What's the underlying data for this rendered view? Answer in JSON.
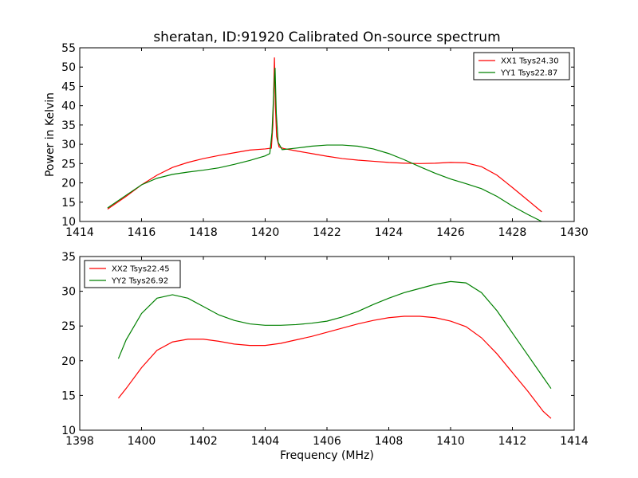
{
  "title": "sheratan, ID:91920 Calibrated On-source spectrum",
  "chart_data": [
    {
      "type": "line",
      "title": "sheratan, ID:91920 Calibrated On-source spectrum",
      "xlabel": "",
      "ylabel": "Power in Kelvin",
      "xlim": [
        1414,
        1430
      ],
      "ylim": [
        10,
        55
      ],
      "xticks": [
        "1414",
        "1416",
        "1418",
        "1420",
        "1422",
        "1424",
        "1426",
        "1428",
        "1430"
      ],
      "yticks": [
        "10",
        "15",
        "20",
        "25",
        "30",
        "35",
        "40",
        "45",
        "50",
        "55"
      ],
      "grid": false,
      "legend_position": "top-right",
      "series": [
        {
          "name": "XX1 Tsys24.30",
          "color": "#ff0000",
          "points": [
            [
              1414.9,
              13.2
            ],
            [
              1415.5,
              16.5
            ],
            [
              1416.0,
              19.5
            ],
            [
              1416.5,
              22.0
            ],
            [
              1417.0,
              24.0
            ],
            [
              1417.5,
              25.3
            ],
            [
              1418.0,
              26.3
            ],
            [
              1418.5,
              27.1
            ],
            [
              1419.0,
              27.8
            ],
            [
              1419.5,
              28.5
            ],
            [
              1420.0,
              28.8
            ],
            [
              1420.2,
              29.0
            ],
            [
              1420.25,
              35.0
            ],
            [
              1420.28,
              45.0
            ],
            [
              1420.3,
              52.5
            ],
            [
              1420.33,
              40.0
            ],
            [
              1420.37,
              32.0
            ],
            [
              1420.45,
              29.3
            ],
            [
              1420.6,
              28.9
            ],
            [
              1421.0,
              28.3
            ],
            [
              1421.5,
              27.6
            ],
            [
              1422.0,
              26.9
            ],
            [
              1422.5,
              26.3
            ],
            [
              1423.0,
              25.9
            ],
            [
              1423.5,
              25.6
            ],
            [
              1424.0,
              25.3
            ],
            [
              1424.5,
              25.1
            ],
            [
              1425.0,
              25.0
            ],
            [
              1425.5,
              25.1
            ],
            [
              1426.0,
              25.3
            ],
            [
              1426.5,
              25.2
            ],
            [
              1427.0,
              24.2
            ],
            [
              1427.5,
              22.0
            ],
            [
              1428.0,
              18.8
            ],
            [
              1428.5,
              15.5
            ],
            [
              1428.95,
              12.5
            ]
          ]
        },
        {
          "name": "YY1 Tsys22.87",
          "color": "#008000",
          "points": [
            [
              1414.9,
              13.5
            ],
            [
              1415.5,
              16.8
            ],
            [
              1416.0,
              19.5
            ],
            [
              1416.5,
              21.2
            ],
            [
              1417.0,
              22.2
            ],
            [
              1417.5,
              22.8
            ],
            [
              1418.0,
              23.3
            ],
            [
              1418.5,
              23.9
            ],
            [
              1419.0,
              24.8
            ],
            [
              1419.5,
              25.8
            ],
            [
              1420.0,
              27.0
            ],
            [
              1420.15,
              27.6
            ],
            [
              1420.22,
              33.0
            ],
            [
              1420.28,
              44.0
            ],
            [
              1420.32,
              49.8
            ],
            [
              1420.36,
              38.0
            ],
            [
              1420.42,
              30.5
            ],
            [
              1420.55,
              28.6
            ],
            [
              1421.0,
              29.0
            ],
            [
              1421.5,
              29.5
            ],
            [
              1422.0,
              29.8
            ],
            [
              1422.5,
              29.8
            ],
            [
              1423.0,
              29.5
            ],
            [
              1423.5,
              28.8
            ],
            [
              1424.0,
              27.6
            ],
            [
              1424.5,
              26.0
            ],
            [
              1425.0,
              24.2
            ],
            [
              1425.5,
              22.5
            ],
            [
              1426.0,
              21.0
            ],
            [
              1426.5,
              19.8
            ],
            [
              1427.0,
              18.5
            ],
            [
              1427.5,
              16.5
            ],
            [
              1428.0,
              14.0
            ],
            [
              1428.5,
              11.8
            ],
            [
              1428.95,
              10.0
            ]
          ]
        }
      ]
    },
    {
      "type": "line",
      "title": "",
      "xlabel": "Frequency (MHz)",
      "ylabel": "",
      "xlim": [
        1398,
        1414
      ],
      "ylim": [
        10,
        35
      ],
      "xticks": [
        "1398",
        "1400",
        "1402",
        "1404",
        "1406",
        "1408",
        "1410",
        "1412",
        "1414"
      ],
      "yticks": [
        "10",
        "15",
        "20",
        "25",
        "30",
        "35"
      ],
      "grid": false,
      "legend_position": "top-left",
      "series": [
        {
          "name": "XX2 Tsys22.45",
          "color": "#ff0000",
          "points": [
            [
              1399.25,
              14.6
            ],
            [
              1399.5,
              16.0
            ],
            [
              1400.0,
              19.0
            ],
            [
              1400.5,
              21.5
            ],
            [
              1401.0,
              22.7
            ],
            [
              1401.5,
              23.1
            ],
            [
              1402.0,
              23.1
            ],
            [
              1402.5,
              22.8
            ],
            [
              1403.0,
              22.4
            ],
            [
              1403.5,
              22.2
            ],
            [
              1404.0,
              22.2
            ],
            [
              1404.5,
              22.5
            ],
            [
              1405.0,
              23.0
            ],
            [
              1405.5,
              23.5
            ],
            [
              1406.0,
              24.1
            ],
            [
              1406.5,
              24.7
            ],
            [
              1407.0,
              25.3
            ],
            [
              1407.5,
              25.8
            ],
            [
              1408.0,
              26.2
            ],
            [
              1408.5,
              26.4
            ],
            [
              1409.0,
              26.4
            ],
            [
              1409.5,
              26.2
            ],
            [
              1410.0,
              25.7
            ],
            [
              1410.5,
              24.9
            ],
            [
              1411.0,
              23.3
            ],
            [
              1411.5,
              21.0
            ],
            [
              1412.0,
              18.3
            ],
            [
              1412.5,
              15.6
            ],
            [
              1413.0,
              12.7
            ],
            [
              1413.25,
              11.7
            ]
          ]
        },
        {
          "name": "YY2 Tsys26.92",
          "color": "#008000",
          "points": [
            [
              1399.25,
              20.3
            ],
            [
              1399.5,
              23.0
            ],
            [
              1400.0,
              26.8
            ],
            [
              1400.5,
              29.0
            ],
            [
              1401.0,
              29.5
            ],
            [
              1401.5,
              29.0
            ],
            [
              1402.0,
              27.8
            ],
            [
              1402.5,
              26.6
            ],
            [
              1403.0,
              25.8
            ],
            [
              1403.5,
              25.3
            ],
            [
              1404.0,
              25.1
            ],
            [
              1404.5,
              25.1
            ],
            [
              1405.0,
              25.2
            ],
            [
              1405.5,
              25.4
            ],
            [
              1406.0,
              25.7
            ],
            [
              1406.5,
              26.3
            ],
            [
              1407.0,
              27.1
            ],
            [
              1407.5,
              28.1
            ],
            [
              1408.0,
              29.0
            ],
            [
              1408.5,
              29.8
            ],
            [
              1409.0,
              30.4
            ],
            [
              1409.5,
              31.0
            ],
            [
              1410.0,
              31.4
            ],
            [
              1410.5,
              31.2
            ],
            [
              1411.0,
              29.8
            ],
            [
              1411.5,
              27.2
            ],
            [
              1412.0,
              24.0
            ],
            [
              1412.5,
              20.8
            ],
            [
              1413.0,
              17.6
            ],
            [
              1413.25,
              16.0
            ]
          ]
        }
      ]
    }
  ]
}
